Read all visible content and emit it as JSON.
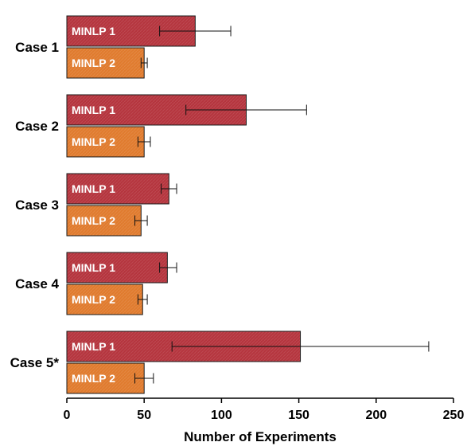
{
  "chart_data": {
    "type": "bar",
    "orientation": "horizontal",
    "categories": [
      "Case 1",
      "Case 2",
      "Case 3",
      "Case 4",
      "Case 5*"
    ],
    "series": [
      {
        "name": "MINLP 1",
        "color": "#b5353e",
        "values": [
          83,
          116,
          66,
          65,
          151
        ],
        "error_low": [
          60,
          77,
          61,
          60,
          68
        ],
        "error_high": [
          106,
          155,
          71,
          71,
          234
        ]
      },
      {
        "name": "MINLP 2",
        "color": "#e07b2e",
        "values": [
          50,
          50,
          48,
          49,
          50
        ],
        "error_low": [
          48,
          46,
          44,
          46,
          44
        ],
        "error_high": [
          52,
          54,
          52,
          52,
          56
        ]
      }
    ],
    "xlabel": "Number of Experiments",
    "ylabel": "",
    "title": "",
    "xlim": [
      0,
      250
    ],
    "xticks": [
      "0",
      "50",
      "100",
      "150",
      "200",
      "250"
    ],
    "grid": false,
    "legend": "none"
  }
}
